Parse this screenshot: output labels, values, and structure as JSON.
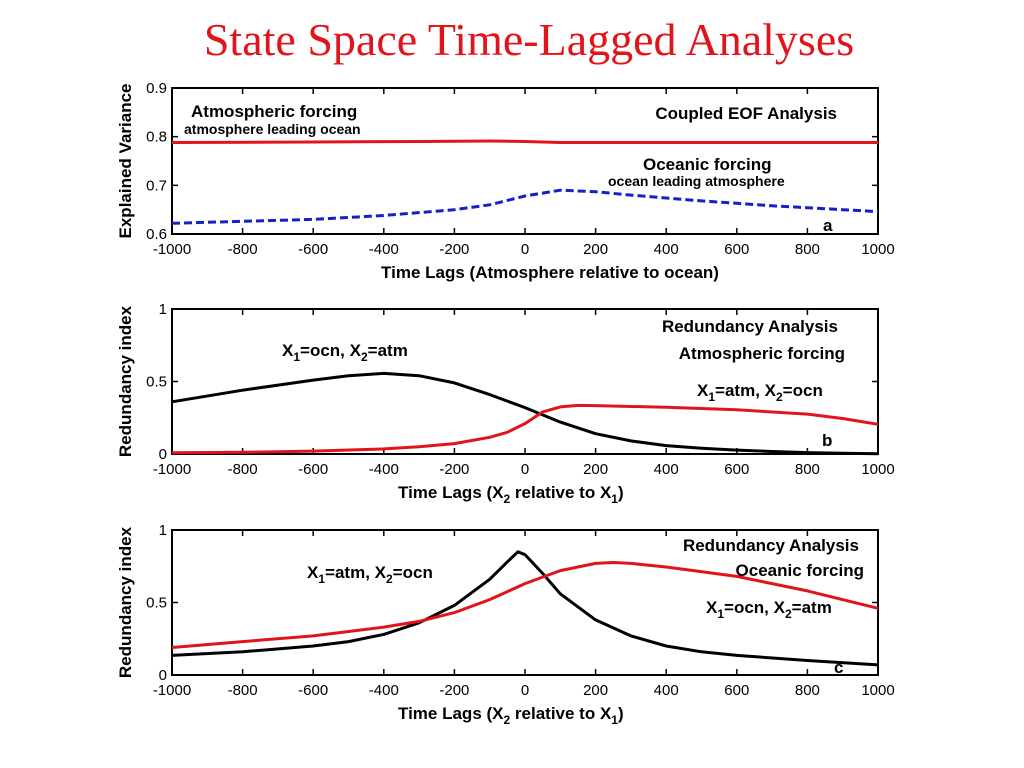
{
  "title": "State Space Time-Lagged Analyses",
  "colors": {
    "title": "#e0151b",
    "red": "#e0151b",
    "blue": "#1420c8",
    "black": "#000000"
  },
  "chart_data": [
    {
      "type": "line",
      "panel_label": "a",
      "xlabel": "Time Lags (Atmosphere relative to ocean)",
      "ylabel": "Explained Variance",
      "xlim": [
        -1000,
        1000
      ],
      "ylim": [
        0.6,
        0.9
      ],
      "xticks": [
        -1000,
        -800,
        -600,
        -400,
        -200,
        0,
        200,
        400,
        600,
        800,
        1000
      ],
      "yticks": [
        0.6,
        0.7,
        0.8,
        0.9
      ],
      "ytick_labels": [
        "0.6",
        "0.7",
        "0.8",
        "0.9"
      ],
      "annotations": {
        "right_title": "Coupled EOF Analysis",
        "series_a_title": "Atmospheric forcing",
        "series_a_sub": "atmosphere leading ocean",
        "series_b_title": "Oceanic forcing",
        "series_b_sub": "ocean leading atmosphere"
      },
      "series": [
        {
          "color": "red",
          "style": "solid",
          "points": [
            [
              -1000,
              0.788
            ],
            [
              -600,
              0.789
            ],
            [
              -300,
              0.79
            ],
            [
              -100,
              0.791
            ],
            [
              0,
              0.79
            ],
            [
              100,
              0.788
            ],
            [
              400,
              0.788
            ],
            [
              1000,
              0.788
            ]
          ]
        },
        {
          "color": "blue",
          "style": "dashed",
          "points": [
            [
              -1000,
              0.622
            ],
            [
              -800,
              0.626
            ],
            [
              -600,
              0.63
            ],
            [
              -400,
              0.638
            ],
            [
              -200,
              0.65
            ],
            [
              -100,
              0.66
            ],
            [
              0,
              0.678
            ],
            [
              100,
              0.69
            ],
            [
              200,
              0.687
            ],
            [
              300,
              0.68
            ],
            [
              400,
              0.674
            ],
            [
              500,
              0.668
            ],
            [
              600,
              0.663
            ],
            [
              700,
              0.658
            ],
            [
              800,
              0.654
            ],
            [
              900,
              0.65
            ],
            [
              1000,
              0.646
            ]
          ]
        }
      ]
    },
    {
      "type": "line",
      "panel_label": "b",
      "xlabel_parts": [
        "Time Lags (X",
        "2",
        " relative to X",
        "1",
        ")"
      ],
      "ylabel": "Redundancy index",
      "xlim": [
        -1000,
        1000
      ],
      "ylim": [
        0,
        1
      ],
      "xticks": [
        -1000,
        -800,
        -600,
        -400,
        -200,
        0,
        200,
        400,
        600,
        800,
        1000
      ],
      "yticks": [
        0,
        0.5,
        1
      ],
      "ytick_labels": [
        "0",
        "0.5",
        "1"
      ],
      "annotations": {
        "right_title": "Redundancy Analysis",
        "right_sub": "Atmospheric forcing",
        "label_black": [
          "X",
          "1",
          "=ocn, X",
          "2",
          "=atm"
        ],
        "label_red": [
          "X",
          "1",
          "=atm, X",
          "2",
          "=ocn"
        ]
      },
      "series": [
        {
          "color": "black",
          "style": "solid",
          "points": [
            [
              -1000,
              0.36
            ],
            [
              -800,
              0.44
            ],
            [
              -600,
              0.51
            ],
            [
              -500,
              0.54
            ],
            [
              -400,
              0.556
            ],
            [
              -300,
              0.54
            ],
            [
              -200,
              0.49
            ],
            [
              -100,
              0.41
            ],
            [
              0,
              0.32
            ],
            [
              100,
              0.22
            ],
            [
              200,
              0.14
            ],
            [
              300,
              0.09
            ],
            [
              400,
              0.058
            ],
            [
              500,
              0.04
            ],
            [
              600,
              0.027
            ],
            [
              700,
              0.017
            ],
            [
              800,
              0.01
            ],
            [
              900,
              0.005
            ],
            [
              1000,
              0.002
            ]
          ]
        },
        {
          "color": "red",
          "style": "solid",
          "points": [
            [
              -1000,
              0.008
            ],
            [
              -800,
              0.012
            ],
            [
              -600,
              0.02
            ],
            [
              -400,
              0.035
            ],
            [
              -300,
              0.05
            ],
            [
              -200,
              0.072
            ],
            [
              -100,
              0.115
            ],
            [
              -50,
              0.15
            ],
            [
              0,
              0.21
            ],
            [
              50,
              0.29
            ],
            [
              100,
              0.325
            ],
            [
              150,
              0.335
            ],
            [
              200,
              0.334
            ],
            [
              400,
              0.322
            ],
            [
              600,
              0.305
            ],
            [
              800,
              0.275
            ],
            [
              900,
              0.245
            ],
            [
              1000,
              0.205
            ]
          ]
        }
      ]
    },
    {
      "type": "line",
      "panel_label": "c",
      "xlabel_parts": [
        "Time Lags (X",
        "2",
        " relative to X",
        "1",
        ")"
      ],
      "ylabel": "Redundancy index",
      "xlim": [
        -1000,
        1000
      ],
      "ylim": [
        0,
        1
      ],
      "xticks": [
        -1000,
        -800,
        -600,
        -400,
        -200,
        0,
        200,
        400,
        600,
        800,
        1000
      ],
      "yticks": [
        0,
        0.5,
        1
      ],
      "ytick_labels": [
        "0",
        "0.5",
        "1"
      ],
      "annotations": {
        "right_title": "Redundancy Analysis",
        "right_sub": "Oceanic forcing",
        "label_black": [
          "X",
          "1",
          "=atm, X",
          "2",
          "=ocn"
        ],
        "label_red": [
          "X",
          "1",
          "=ocn, X",
          "2",
          "=atm"
        ]
      },
      "series": [
        {
          "color": "black",
          "style": "solid",
          "points": [
            [
              -1000,
              0.135
            ],
            [
              -800,
              0.16
            ],
            [
              -600,
              0.2
            ],
            [
              -500,
              0.23
            ],
            [
              -400,
              0.28
            ],
            [
              -300,
              0.36
            ],
            [
              -200,
              0.48
            ],
            [
              -100,
              0.66
            ],
            [
              -50,
              0.78
            ],
            [
              -20,
              0.85
            ],
            [
              0,
              0.83
            ],
            [
              50,
              0.7
            ],
            [
              100,
              0.56
            ],
            [
              200,
              0.38
            ],
            [
              300,
              0.27
            ],
            [
              400,
              0.2
            ],
            [
              500,
              0.16
            ],
            [
              600,
              0.135
            ],
            [
              800,
              0.1
            ],
            [
              1000,
              0.07
            ]
          ]
        },
        {
          "color": "red",
          "style": "solid",
          "points": [
            [
              -1000,
              0.19
            ],
            [
              -800,
              0.23
            ],
            [
              -600,
              0.27
            ],
            [
              -400,
              0.33
            ],
            [
              -300,
              0.37
            ],
            [
              -200,
              0.43
            ],
            [
              -100,
              0.52
            ],
            [
              0,
              0.63
            ],
            [
              100,
              0.72
            ],
            [
              200,
              0.77
            ],
            [
              250,
              0.776
            ],
            [
              300,
              0.77
            ],
            [
              400,
              0.745
            ],
            [
              600,
              0.68
            ],
            [
              800,
              0.58
            ],
            [
              1000,
              0.46
            ]
          ]
        }
      ]
    }
  ]
}
